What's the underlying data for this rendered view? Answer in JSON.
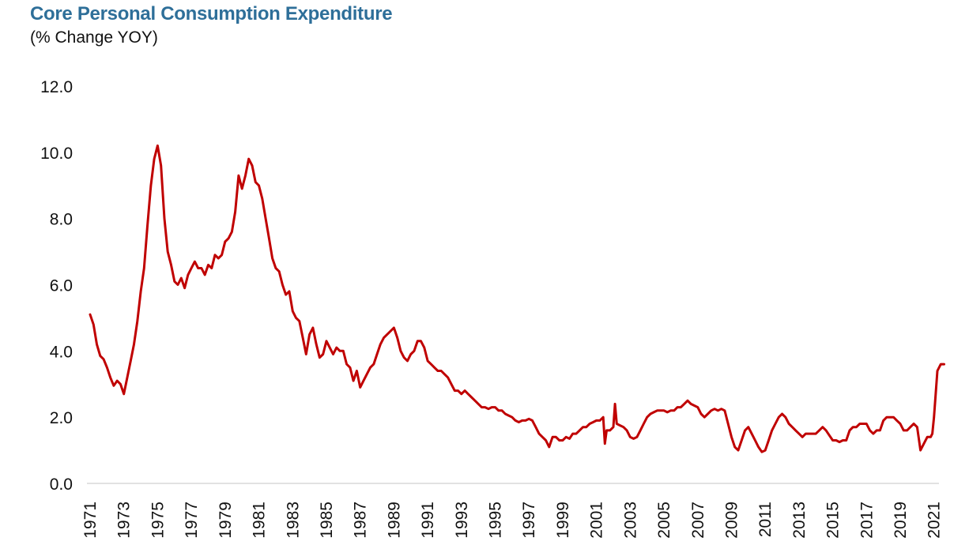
{
  "chart_data": {
    "type": "line",
    "title": "Core Personal Consumption Expenditure",
    "subtitle": "(% Change YOY)",
    "xlabel": "",
    "ylabel": "",
    "ylim": [
      0,
      12
    ],
    "xlim": [
      1971,
      2021.2
    ],
    "grid": false,
    "legend": "none",
    "y_ticks": [
      "0.0",
      "2.0",
      "4.0",
      "6.0",
      "8.0",
      "10.0",
      "12.0"
    ],
    "x_ticks": [
      "1971",
      "1973",
      "1975",
      "1977",
      "1979",
      "1981",
      "1983",
      "1985",
      "1987",
      "1989",
      "1991",
      "1993",
      "1995",
      "1997",
      "1999",
      "2001",
      "2003",
      "2005",
      "2007",
      "2009",
      "2011",
      "2013",
      "2015",
      "2017",
      "2019",
      "2021"
    ],
    "series": [
      {
        "color": "#c00000",
        "points": [
          [
            1971.0,
            5.1
          ],
          [
            1971.2,
            4.8
          ],
          [
            1971.4,
            4.2
          ],
          [
            1971.6,
            3.85
          ],
          [
            1971.8,
            3.75
          ],
          [
            1972.0,
            3.5
          ],
          [
            1972.2,
            3.2
          ],
          [
            1972.4,
            2.95
          ],
          [
            1972.6,
            3.1
          ],
          [
            1972.8,
            3.0
          ],
          [
            1973.0,
            2.7
          ],
          [
            1973.2,
            3.2
          ],
          [
            1973.4,
            3.7
          ],
          [
            1973.6,
            4.2
          ],
          [
            1973.8,
            4.9
          ],
          [
            1974.0,
            5.8
          ],
          [
            1974.2,
            6.5
          ],
          [
            1974.4,
            7.8
          ],
          [
            1974.6,
            9.0
          ],
          [
            1974.8,
            9.8
          ],
          [
            1975.0,
            10.2
          ],
          [
            1975.2,
            9.6
          ],
          [
            1975.4,
            8.0
          ],
          [
            1975.6,
            7.0
          ],
          [
            1975.8,
            6.6
          ],
          [
            1976.0,
            6.1
          ],
          [
            1976.2,
            6.0
          ],
          [
            1976.4,
            6.2
          ],
          [
            1976.6,
            5.9
          ],
          [
            1976.8,
            6.3
          ],
          [
            1977.0,
            6.5
          ],
          [
            1977.2,
            6.7
          ],
          [
            1977.4,
            6.5
          ],
          [
            1977.6,
            6.5
          ],
          [
            1977.8,
            6.3
          ],
          [
            1978.0,
            6.6
          ],
          [
            1978.2,
            6.5
          ],
          [
            1978.4,
            6.9
          ],
          [
            1978.6,
            6.8
          ],
          [
            1978.8,
            6.9
          ],
          [
            1979.0,
            7.3
          ],
          [
            1979.2,
            7.4
          ],
          [
            1979.4,
            7.6
          ],
          [
            1979.6,
            8.2
          ],
          [
            1979.8,
            9.3
          ],
          [
            1980.0,
            8.9
          ],
          [
            1980.2,
            9.3
          ],
          [
            1980.4,
            9.8
          ],
          [
            1980.6,
            9.6
          ],
          [
            1980.8,
            9.1
          ],
          [
            1981.0,
            9.0
          ],
          [
            1981.2,
            8.6
          ],
          [
            1981.4,
            8.0
          ],
          [
            1981.6,
            7.4
          ],
          [
            1981.8,
            6.8
          ],
          [
            1982.0,
            6.5
          ],
          [
            1982.2,
            6.4
          ],
          [
            1982.4,
            6.0
          ],
          [
            1982.6,
            5.7
          ],
          [
            1982.8,
            5.8
          ],
          [
            1983.0,
            5.2
          ],
          [
            1983.2,
            5.0
          ],
          [
            1983.4,
            4.9
          ],
          [
            1983.6,
            4.4
          ],
          [
            1983.8,
            3.9
          ],
          [
            1984.0,
            4.5
          ],
          [
            1984.2,
            4.7
          ],
          [
            1984.4,
            4.2
          ],
          [
            1984.6,
            3.8
          ],
          [
            1984.8,
            3.9
          ],
          [
            1985.0,
            4.3
          ],
          [
            1985.2,
            4.1
          ],
          [
            1985.4,
            3.9
          ],
          [
            1985.6,
            4.1
          ],
          [
            1985.8,
            4.0
          ],
          [
            1986.0,
            4.0
          ],
          [
            1986.2,
            3.6
          ],
          [
            1986.4,
            3.5
          ],
          [
            1986.6,
            3.1
          ],
          [
            1986.8,
            3.4
          ],
          [
            1987.0,
            2.9
          ],
          [
            1987.2,
            3.1
          ],
          [
            1987.4,
            3.3
          ],
          [
            1987.6,
            3.5
          ],
          [
            1987.8,
            3.6
          ],
          [
            1988.0,
            3.9
          ],
          [
            1988.2,
            4.2
          ],
          [
            1988.4,
            4.4
          ],
          [
            1988.6,
            4.5
          ],
          [
            1988.8,
            4.6
          ],
          [
            1989.0,
            4.7
          ],
          [
            1989.2,
            4.4
          ],
          [
            1989.4,
            4.0
          ],
          [
            1989.6,
            3.8
          ],
          [
            1989.8,
            3.7
          ],
          [
            1990.0,
            3.9
          ],
          [
            1990.2,
            4.0
          ],
          [
            1990.4,
            4.3
          ],
          [
            1990.6,
            4.3
          ],
          [
            1990.8,
            4.1
          ],
          [
            1991.0,
            3.7
          ],
          [
            1991.2,
            3.6
          ],
          [
            1991.4,
            3.5
          ],
          [
            1991.6,
            3.4
          ],
          [
            1991.8,
            3.4
          ],
          [
            1992.0,
            3.3
          ],
          [
            1992.2,
            3.2
          ],
          [
            1992.4,
            3.0
          ],
          [
            1992.6,
            2.8
          ],
          [
            1992.8,
            2.8
          ],
          [
            1993.0,
            2.7
          ],
          [
            1993.2,
            2.8
          ],
          [
            1993.4,
            2.7
          ],
          [
            1993.6,
            2.6
          ],
          [
            1993.8,
            2.5
          ],
          [
            1994.0,
            2.4
          ],
          [
            1994.2,
            2.3
          ],
          [
            1994.4,
            2.3
          ],
          [
            1994.6,
            2.25
          ],
          [
            1994.8,
            2.3
          ],
          [
            1995.0,
            2.3
          ],
          [
            1995.2,
            2.2
          ],
          [
            1995.4,
            2.2
          ],
          [
            1995.6,
            2.1
          ],
          [
            1995.8,
            2.05
          ],
          [
            1996.0,
            2.0
          ],
          [
            1996.2,
            1.9
          ],
          [
            1996.4,
            1.85
          ],
          [
            1996.6,
            1.9
          ],
          [
            1996.8,
            1.9
          ],
          [
            1997.0,
            1.95
          ],
          [
            1997.2,
            1.9
          ],
          [
            1997.4,
            1.7
          ],
          [
            1997.6,
            1.5
          ],
          [
            1997.8,
            1.4
          ],
          [
            1998.0,
            1.3
          ],
          [
            1998.2,
            1.1
          ],
          [
            1998.4,
            1.4
          ],
          [
            1998.6,
            1.4
          ],
          [
            1998.8,
            1.3
          ],
          [
            1999.0,
            1.3
          ],
          [
            1999.2,
            1.4
          ],
          [
            1999.4,
            1.35
          ],
          [
            1999.6,
            1.5
          ],
          [
            1999.8,
            1.5
          ],
          [
            2000.0,
            1.6
          ],
          [
            2000.2,
            1.7
          ],
          [
            2000.4,
            1.7
          ],
          [
            2000.6,
            1.8
          ],
          [
            2000.8,
            1.85
          ],
          [
            2001.0,
            1.9
          ],
          [
            2001.2,
            1.9
          ],
          [
            2001.4,
            2.0
          ],
          [
            2001.5,
            1.2
          ],
          [
            2001.6,
            1.6
          ],
          [
            2001.8,
            1.6
          ],
          [
            2002.0,
            1.7
          ],
          [
            2002.1,
            2.4
          ],
          [
            2002.2,
            1.8
          ],
          [
            2002.4,
            1.75
          ],
          [
            2002.6,
            1.7
          ],
          [
            2002.8,
            1.6
          ],
          [
            2003.0,
            1.4
          ],
          [
            2003.2,
            1.35
          ],
          [
            2003.4,
            1.4
          ],
          [
            2003.6,
            1.6
          ],
          [
            2003.8,
            1.8
          ],
          [
            2004.0,
            2.0
          ],
          [
            2004.2,
            2.1
          ],
          [
            2004.4,
            2.15
          ],
          [
            2004.6,
            2.2
          ],
          [
            2004.8,
            2.2
          ],
          [
            2005.0,
            2.2
          ],
          [
            2005.2,
            2.15
          ],
          [
            2005.4,
            2.2
          ],
          [
            2005.6,
            2.2
          ],
          [
            2005.8,
            2.3
          ],
          [
            2006.0,
            2.3
          ],
          [
            2006.2,
            2.4
          ],
          [
            2006.4,
            2.5
          ],
          [
            2006.6,
            2.4
          ],
          [
            2006.8,
            2.35
          ],
          [
            2007.0,
            2.3
          ],
          [
            2007.2,
            2.1
          ],
          [
            2007.4,
            2.0
          ],
          [
            2007.6,
            2.1
          ],
          [
            2007.8,
            2.2
          ],
          [
            2008.0,
            2.25
          ],
          [
            2008.2,
            2.2
          ],
          [
            2008.4,
            2.25
          ],
          [
            2008.6,
            2.2
          ],
          [
            2008.8,
            1.8
          ],
          [
            2009.0,
            1.4
          ],
          [
            2009.2,
            1.1
          ],
          [
            2009.4,
            1.0
          ],
          [
            2009.6,
            1.3
          ],
          [
            2009.8,
            1.6
          ],
          [
            2010.0,
            1.7
          ],
          [
            2010.2,
            1.5
          ],
          [
            2010.4,
            1.3
          ],
          [
            2010.6,
            1.1
          ],
          [
            2010.8,
            0.95
          ],
          [
            2011.0,
            1.0
          ],
          [
            2011.2,
            1.3
          ],
          [
            2011.4,
            1.6
          ],
          [
            2011.6,
            1.8
          ],
          [
            2011.8,
            2.0
          ],
          [
            2012.0,
            2.1
          ],
          [
            2012.2,
            2.0
          ],
          [
            2012.4,
            1.8
          ],
          [
            2012.6,
            1.7
          ],
          [
            2012.8,
            1.6
          ],
          [
            2013.0,
            1.5
          ],
          [
            2013.2,
            1.4
          ],
          [
            2013.4,
            1.5
          ],
          [
            2013.6,
            1.5
          ],
          [
            2013.8,
            1.5
          ],
          [
            2014.0,
            1.5
          ],
          [
            2014.2,
            1.6
          ],
          [
            2014.4,
            1.7
          ],
          [
            2014.6,
            1.6
          ],
          [
            2014.8,
            1.45
          ],
          [
            2015.0,
            1.3
          ],
          [
            2015.2,
            1.3
          ],
          [
            2015.4,
            1.25
          ],
          [
            2015.6,
            1.3
          ],
          [
            2015.8,
            1.3
          ],
          [
            2016.0,
            1.6
          ],
          [
            2016.2,
            1.7
          ],
          [
            2016.4,
            1.7
          ],
          [
            2016.6,
            1.8
          ],
          [
            2016.8,
            1.8
          ],
          [
            2017.0,
            1.8
          ],
          [
            2017.2,
            1.6
          ],
          [
            2017.4,
            1.5
          ],
          [
            2017.6,
            1.6
          ],
          [
            2017.8,
            1.6
          ],
          [
            2018.0,
            1.9
          ],
          [
            2018.2,
            2.0
          ],
          [
            2018.4,
            2.0
          ],
          [
            2018.6,
            2.0
          ],
          [
            2018.8,
            1.9
          ],
          [
            2019.0,
            1.8
          ],
          [
            2019.2,
            1.6
          ],
          [
            2019.4,
            1.6
          ],
          [
            2019.6,
            1.7
          ],
          [
            2019.8,
            1.8
          ],
          [
            2020.0,
            1.7
          ],
          [
            2020.2,
            1.0
          ],
          [
            2020.4,
            1.2
          ],
          [
            2020.6,
            1.4
          ],
          [
            2020.8,
            1.4
          ],
          [
            2020.9,
            1.5
          ],
          [
            2021.0,
            2.0
          ],
          [
            2021.2,
            3.4
          ],
          [
            2021.4,
            3.6
          ],
          [
            2021.6,
            3.6
          ]
        ]
      }
    ]
  }
}
